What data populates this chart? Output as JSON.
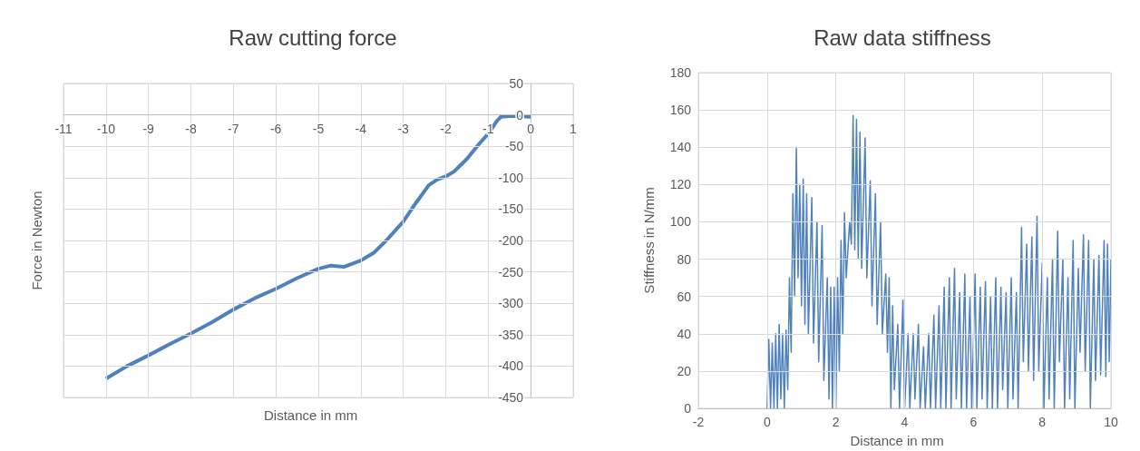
{
  "chart_data": [
    {
      "type": "line",
      "title": "Raw cutting force",
      "xlabel": "Distance in mm",
      "ylabel": "Force in Newton",
      "color": "#4f81bd",
      "marker": "none",
      "grid": true,
      "xlim": [
        -11,
        1
      ],
      "xticks": [
        -11,
        -10,
        -9,
        -8,
        -7,
        -6,
        -5,
        -4,
        -3,
        -2,
        -1,
        0,
        1
      ],
      "ylim": [
        -450,
        50
      ],
      "yticks": [
        -450,
        -400,
        -350,
        -300,
        -250,
        -200,
        -150,
        -100,
        -50,
        0,
        50
      ],
      "x": [
        -10,
        -9.5,
        -9,
        -8.5,
        -8,
        -7.5,
        -7,
        -6.5,
        -6,
        -5.5,
        -5,
        -4.7,
        -4.4,
        -4,
        -3.7,
        -3.4,
        -3,
        -2.7,
        -2.4,
        -2.2,
        -2,
        -1.8,
        -1.5,
        -1.2,
        -1,
        -0.8,
        -0.7,
        -0.5,
        -0.25,
        0
      ],
      "values": [
        -420,
        -400,
        -383,
        -365,
        -348,
        -330,
        -310,
        -292,
        -277,
        -260,
        -245,
        -240,
        -242,
        -232,
        -220,
        -200,
        -170,
        -140,
        -112,
        -103,
        -98,
        -90,
        -70,
        -45,
        -30,
        -10,
        -3,
        -2,
        -2,
        -3
      ]
    },
    {
      "type": "line",
      "title": "Raw data stiffness",
      "xlabel": "Distance in mm",
      "ylabel": "Stiffness in N/mm",
      "color": "#4f81bd",
      "marker": "none",
      "grid": true,
      "xlim": [
        -2,
        10
      ],
      "xticks": [
        -2,
        0,
        2,
        4,
        6,
        8,
        10
      ],
      "ylim": [
        0,
        180
      ],
      "yticks": [
        0,
        20,
        40,
        60,
        80,
        100,
        120,
        140,
        160,
        180
      ],
      "x": [
        0,
        0.05,
        0.1,
        0.15,
        0.2,
        0.25,
        0.3,
        0.35,
        0.4,
        0.45,
        0.5,
        0.55,
        0.6,
        0.65,
        0.7,
        0.75,
        0.8,
        0.85,
        0.9,
        0.95,
        1.0,
        1.05,
        1.1,
        1.15,
        1.2,
        1.3,
        1.35,
        1.45,
        1.5,
        1.6,
        1.65,
        1.75,
        1.8,
        1.85,
        1.9,
        1.95,
        2.0,
        2.05,
        2.1,
        2.15,
        2.2,
        2.25,
        2.3,
        2.4,
        2.45,
        2.5,
        2.55,
        2.6,
        2.65,
        2.7,
        2.75,
        2.85,
        2.9,
        3.0,
        3.05,
        3.15,
        3.2,
        3.3,
        3.35,
        3.45,
        3.5,
        3.55,
        3.6,
        3.65,
        3.7,
        3.8,
        3.85,
        3.95,
        4.0,
        4.1,
        4.15,
        4.25,
        4.3,
        4.4,
        4.45,
        4.55,
        4.6,
        4.7,
        4.75,
        4.85,
        4.9,
        5.0,
        5.05,
        5.15,
        5.2,
        5.3,
        5.35,
        5.45,
        5.5,
        5.6,
        5.65,
        5.75,
        5.8,
        5.9,
        5.95,
        6.05,
        6.1,
        6.2,
        6.25,
        6.35,
        6.4,
        6.5,
        6.55,
        6.65,
        6.7,
        6.8,
        6.85,
        6.95,
        7.0,
        7.1,
        7.15,
        7.25,
        7.3,
        7.4,
        7.45,
        7.55,
        7.6,
        7.7,
        7.75,
        7.85,
        7.9,
        8.0,
        8.05,
        8.15,
        8.2,
        8.3,
        8.35,
        8.45,
        8.5,
        8.6,
        8.65,
        8.75,
        8.8,
        8.9,
        8.95,
        9.05,
        9.1,
        9.2,
        9.25,
        9.35,
        9.4,
        9.5,
        9.55,
        9.65,
        9.7,
        9.8,
        9.85,
        9.9,
        9.95,
        10.0
      ],
      "values": [
        0,
        37,
        0,
        35,
        0,
        40,
        0,
        45,
        5,
        40,
        0,
        42,
        10,
        70,
        30,
        115,
        60,
        140,
        70,
        120,
        55,
        123,
        45,
        115,
        40,
        113,
        35,
        100,
        25,
        98,
        15,
        70,
        5,
        65,
        0,
        65,
        0,
        70,
        20,
        90,
        40,
        105,
        70,
        100,
        88,
        157,
        85,
        155,
        80,
        148,
        75,
        145,
        70,
        122,
        55,
        115,
        45,
        100,
        40,
        72,
        30,
        70,
        0,
        55,
        10,
        45,
        0,
        58,
        0,
        40,
        0,
        40,
        5,
        45,
        0,
        33,
        0,
        40,
        0,
        50,
        0,
        55,
        0,
        65,
        0,
        70,
        0,
        75,
        5,
        62,
        0,
        72,
        0,
        60,
        0,
        72,
        0,
        65,
        5,
        68,
        0,
        60,
        0,
        70,
        0,
        65,
        10,
        62,
        0,
        70,
        5,
        62,
        0,
        97,
        25,
        88,
        20,
        92,
        15,
        103,
        20,
        78,
        0,
        70,
        5,
        80,
        0,
        95,
        25,
        80,
        0,
        70,
        5,
        90,
        0,
        75,
        30,
        93,
        20,
        90,
        0,
        80,
        15,
        82,
        18,
        90,
        17,
        88,
        25,
        80
      ]
    }
  ]
}
